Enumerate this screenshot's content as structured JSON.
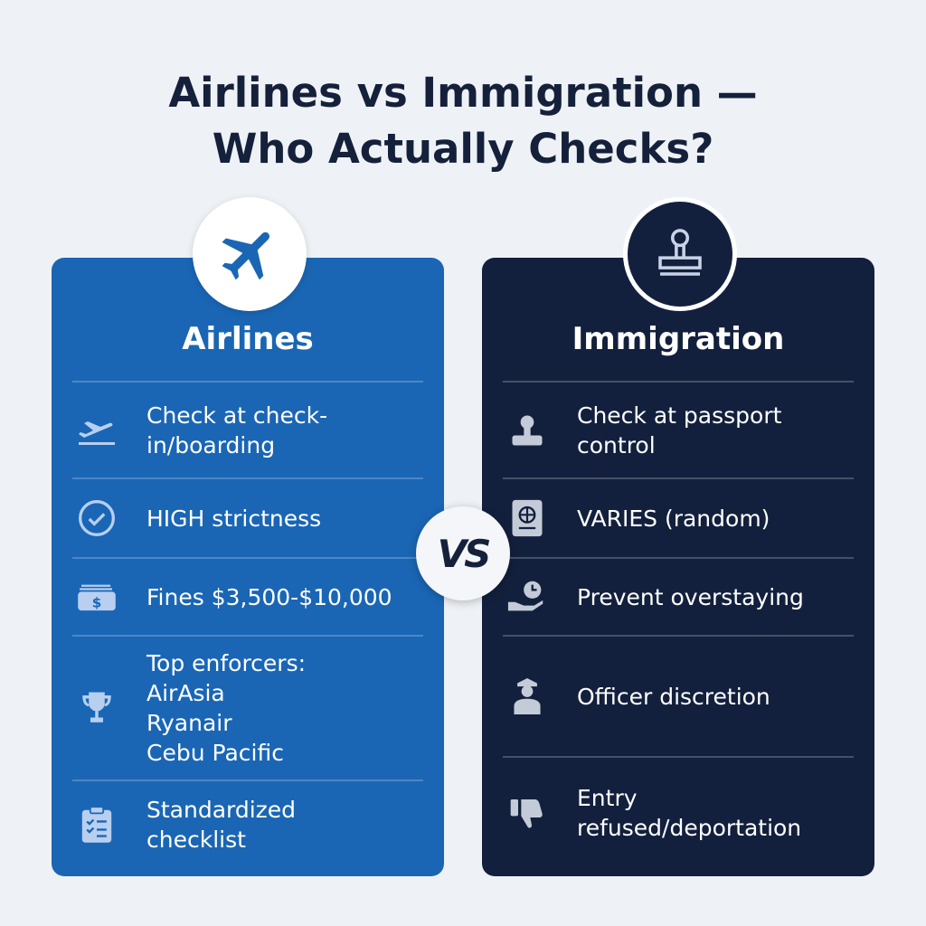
{
  "title_line1": "Airlines vs Immigration —",
  "title_line2": "Who Actually Checks?",
  "vs": "VS",
  "colors": {
    "airlines": "#1a66b5",
    "immigration": "#13203d",
    "title": "#15213b"
  },
  "airlines": {
    "title": "Airlines",
    "icon": "airplane-icon",
    "rows": [
      {
        "icon": "departure-icon",
        "text": "Check at check-in/boarding"
      },
      {
        "icon": "check-circle-icon",
        "text": "HIGH strictness"
      },
      {
        "icon": "money-icon",
        "text": "Fines $3,500-$10,000"
      },
      {
        "icon": "trophy-icon",
        "lines": [
          "Top enforcers:",
          "AirAsia",
          "Ryanair",
          "Cebu Pacific"
        ]
      },
      {
        "icon": "clipboard-icon",
        "text": "Standardized checklist"
      }
    ]
  },
  "immigration": {
    "title": "Immigration",
    "icon": "stamp-icon",
    "rows": [
      {
        "icon": "officer-stamp-icon",
        "text": "Check at passport control"
      },
      {
        "icon": "passport-icon",
        "text": "VARIES (random)"
      },
      {
        "icon": "clock-hand-icon",
        "text": "Prevent overstaying"
      },
      {
        "icon": "officer-icon",
        "text": "Officer discretion"
      },
      {
        "icon": "thumbs-down-icon",
        "text": "Entry refused/deportation"
      }
    ]
  }
}
